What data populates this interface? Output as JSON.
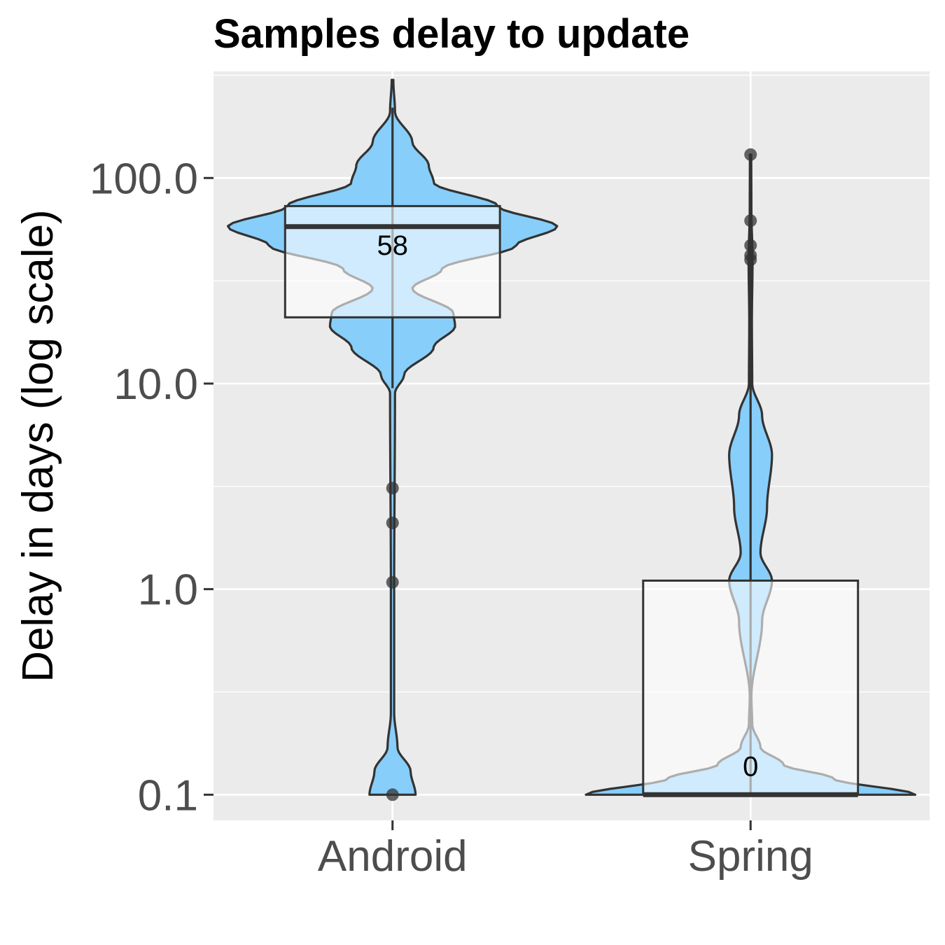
{
  "chart_data": {
    "type": "violin",
    "title": "Samples delay to update",
    "xlabel": "",
    "ylabel": "Delay in days (log scale)",
    "y_scale": "log10",
    "ylim": [
      0.075,
      330
    ],
    "y_ticks": [
      0.1,
      1.0,
      10.0,
      100.0
    ],
    "y_tick_labels": [
      "0.1",
      "1.0",
      "10.0",
      "100.0"
    ],
    "grid": true,
    "colors": {
      "panel_background": "#ebebeb",
      "grid": "#ffffff",
      "violin_fill": "#87cefa",
      "outline": "#333333",
      "box_fill": "#ffffff",
      "text": "#4d4d4d"
    },
    "categories": [
      "Android",
      "Spring"
    ],
    "groups": [
      {
        "name": "Android",
        "min": 0.1,
        "max": 300,
        "box": {
          "q1": 21,
          "median": 58,
          "q3": 73,
          "whisker_low": 9.5,
          "whisker_high": 220
        },
        "median_label": "58",
        "outliers": [
          0.1,
          1.08,
          2.1,
          3.1
        ],
        "density": [
          [
            0.1,
            0.14
          ],
          [
            0.13,
            0.11
          ],
          [
            0.17,
            0.03
          ],
          [
            0.25,
            0.01
          ],
          [
            1.0,
            0.01
          ],
          [
            9.0,
            0.015
          ],
          [
            11.0,
            0.07
          ],
          [
            15.0,
            0.25
          ],
          [
            19.0,
            0.38
          ],
          [
            22.0,
            0.37
          ],
          [
            29.0,
            0.12
          ],
          [
            36.0,
            0.3
          ],
          [
            47.0,
            0.75
          ],
          [
            58.0,
            1.0
          ],
          [
            73.0,
            0.64
          ],
          [
            95.0,
            0.25
          ],
          [
            115.0,
            0.22
          ],
          [
            150.0,
            0.12
          ],
          [
            210.0,
            0.015
          ],
          [
            300.0,
            0.005
          ]
        ]
      },
      {
        "name": "Spring",
        "min": 0.1,
        "max": 130,
        "box": {
          "q1": 0.1,
          "median": 0.1,
          "q3": 1.1,
          "whisker_low": 0.1,
          "whisker_high": 130
        },
        "median_label": "0",
        "outliers": [
          40,
          42,
          47,
          62,
          130
        ],
        "density": [
          [
            0.1,
            1.0
          ],
          [
            0.12,
            0.5
          ],
          [
            0.14,
            0.2
          ],
          [
            0.17,
            0.06
          ],
          [
            0.22,
            0.01
          ],
          [
            0.3,
            0.005
          ],
          [
            0.7,
            0.07
          ],
          [
            1.1,
            0.13
          ],
          [
            1.5,
            0.06
          ],
          [
            2.5,
            0.1
          ],
          [
            4.5,
            0.13
          ],
          [
            7.0,
            0.07
          ],
          [
            10.0,
            0.01
          ],
          [
            20.0,
            0.008
          ],
          [
            40.0,
            0.012
          ],
          [
            70.0,
            0.005
          ],
          [
            130.0,
            0.004
          ]
        ]
      }
    ]
  }
}
